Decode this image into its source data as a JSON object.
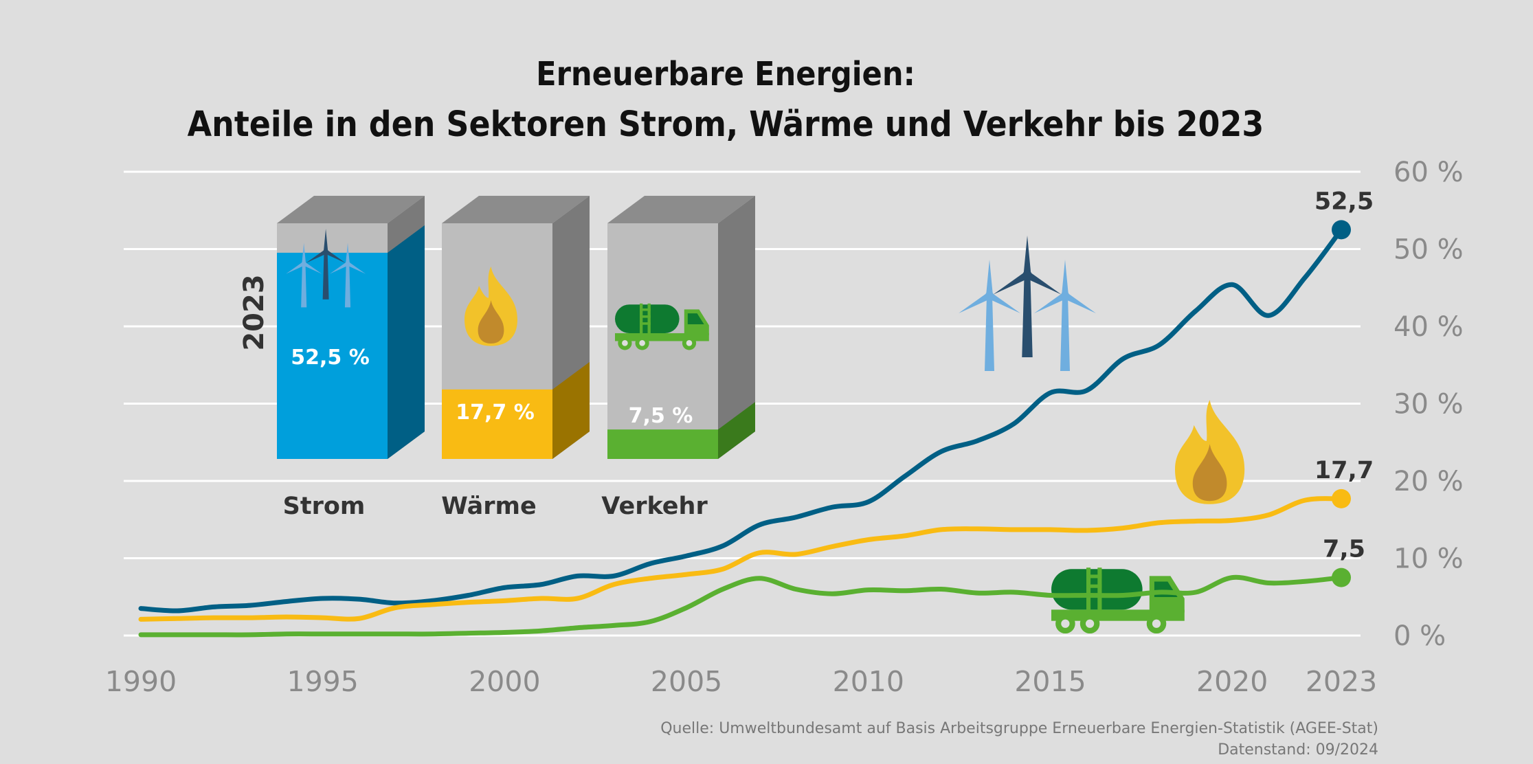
{
  "chart_data": {
    "type": "line",
    "title_line1": "Erneuerbare Energien:",
    "title_line2": "Anteile in den Sektoren Strom, Wärme und Verkehr bis 2023",
    "x_ticks": [
      "1990",
      "1995",
      "2000",
      "2005",
      "2010",
      "2015",
      "2020",
      "2023"
    ],
    "y_ticks": [
      "0 %",
      "10 %",
      "20 %",
      "30 %",
      "40 %",
      "50 %",
      "60 %"
    ],
    "xlim": [
      1990,
      2023
    ],
    "ylim": [
      0,
      60
    ],
    "grid": true,
    "x": [
      1990,
      1991,
      1992,
      1993,
      1994,
      1995,
      1996,
      1997,
      1998,
      1999,
      2000,
      2001,
      2002,
      2003,
      2004,
      2005,
      2006,
      2007,
      2008,
      2009,
      2010,
      2011,
      2012,
      2013,
      2014,
      2015,
      2016,
      2017,
      2018,
      2019,
      2020,
      2021,
      2022,
      2023
    ],
    "series": [
      {
        "key": "strom",
        "color": "#005f85",
        "end_label": "52,5",
        "values": [
          3.5,
          3.2,
          3.7,
          3.9,
          4.4,
          4.8,
          4.7,
          4.2,
          4.5,
          5.2,
          6.2,
          6.6,
          7.7,
          7.7,
          9.3,
          10.3,
          11.6,
          14.3,
          15.3,
          16.6,
          17.3,
          20.6,
          23.8,
          25.2,
          27.4,
          31.4,
          31.7,
          35.8,
          37.6,
          42.0,
          45.4,
          41.4,
          46.3,
          52.5
        ]
      },
      {
        "key": "waerme",
        "color": "#f9bb13",
        "end_label": "17,7",
        "values": [
          2.1,
          2.2,
          2.3,
          2.3,
          2.4,
          2.3,
          2.2,
          3.6,
          4.0,
          4.3,
          4.5,
          4.8,
          4.8,
          6.6,
          7.4,
          7.9,
          8.6,
          10.7,
          10.5,
          11.5,
          12.4,
          12.9,
          13.7,
          13.8,
          13.7,
          13.7,
          13.6,
          13.9,
          14.6,
          14.8,
          14.9,
          15.6,
          17.5,
          17.7
        ]
      },
      {
        "key": "verkehr",
        "color": "#5ab031",
        "end_label": "7,5",
        "values": [
          0.1,
          0.1,
          0.1,
          0.1,
          0.2,
          0.2,
          0.2,
          0.2,
          0.2,
          0.3,
          0.4,
          0.6,
          1.0,
          1.3,
          1.8,
          3.6,
          6.0,
          7.4,
          6.0,
          5.4,
          5.9,
          5.8,
          6.0,
          5.5,
          5.6,
          5.2,
          5.2,
          5.2,
          5.6,
          5.6,
          7.5,
          6.8,
          7.0,
          7.5
        ]
      }
    ],
    "inset": {
      "year_label": "2023",
      "columns": [
        {
          "key": "strom",
          "label": "Strom",
          "value": 52.5,
          "value_label": "52,5 %",
          "front_color": "#009fdc",
          "side_color": "#005f85",
          "icon": "wind-turbines-icon"
        },
        {
          "key": "waerme",
          "label": "Wärme",
          "value": 17.7,
          "value_label": "17,7 %",
          "front_color": "#f9bb13",
          "side_color": "#9a7300",
          "icon": "flame-icon"
        },
        {
          "key": "verkehr",
          "label": "Verkehr",
          "value": 7.5,
          "value_label": "7,5 %",
          "front_color": "#5ab031",
          "side_color": "#3a7a1c",
          "icon": "tanker-truck-icon"
        }
      ]
    },
    "source_line1": "Quelle: Umweltbundesamt auf Basis Arbeitsgruppe Erneuerbare Energien-Statistik (AGEE-Stat)",
    "source_line2": "Datenstand: 09/2024"
  }
}
